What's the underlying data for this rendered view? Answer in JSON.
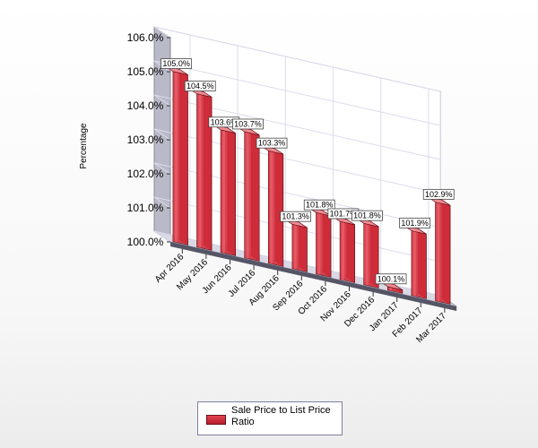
{
  "chart_data": {
    "type": "bar",
    "categories": [
      "Apr 2016",
      "May 2016",
      "Jun 2016",
      "Jul 2016",
      "Aug 2016",
      "Sep 2016",
      "Oct 2016",
      "Nov 2016",
      "Dec 2016",
      "Jan 2017",
      "Feb 2017",
      "Mar 2017"
    ],
    "series": [
      {
        "name": "Sale Price to List Price Ratio",
        "values": [
          105.0,
          104.5,
          103.6,
          103.7,
          103.3,
          101.3,
          101.8,
          101.7,
          101.8,
          100.1,
          101.9,
          102.9
        ],
        "value_labels": [
          "105.0%",
          "104.5%",
          "103.6%",
          "103.7%",
          "103.3%",
          "101.3%",
          "101.8%",
          "101.7%",
          "101.8%",
          "100.1%",
          "101.9%",
          "102.9%"
        ]
      }
    ],
    "ylabel": "Percentage",
    "ylim": [
      100.0,
      106.0
    ],
    "yticks": [
      100.0,
      101.0,
      102.0,
      103.0,
      104.0,
      105.0,
      106.0
    ],
    "ytick_labels": [
      "100.0%",
      "101.0%",
      "102.0%",
      "103.0%",
      "104.0%",
      "105.0%",
      "106.0%"
    ],
    "grid": true,
    "legend_position": "bottom-center",
    "colors": {
      "bar_front": "#d42f3c",
      "bar_top": "#f08a93",
      "bar_side": "#a01824",
      "wall": "#ffffff",
      "floor": "#d9d9e6",
      "grid": "#dcdcec"
    }
  },
  "legend": {
    "label": "Sale Price to List Price Ratio"
  }
}
